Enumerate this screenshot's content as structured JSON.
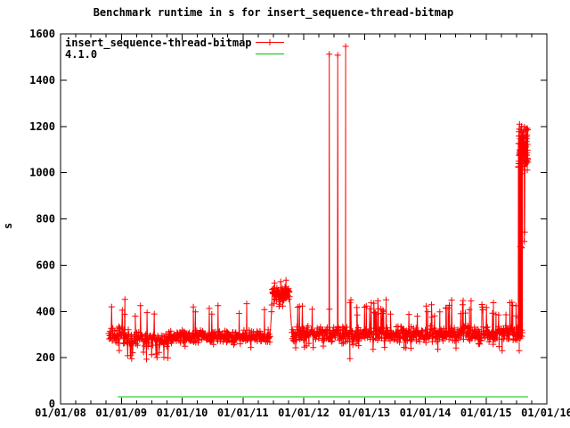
{
  "chart_data": {
    "type": "scatter",
    "style": "gnuplot-linespoints",
    "title": "Benchmark runtime in s for insert_sequence-thread-bitmap",
    "xlabel": "",
    "ylabel": "s",
    "grid": false,
    "legend_position": "top-left-inside",
    "x_tick_labels": [
      "01/01/08",
      "01/01/09",
      "01/01/10",
      "01/01/11",
      "01/01/12",
      "01/01/13",
      "01/01/14",
      "01/01/15",
      "01/01/16"
    ],
    "x_range_years": [
      2008,
      2016
    ],
    "x_minor_ticks_per_year": 4,
    "ylim": [
      0,
      1600
    ],
    "y_tick_step": 200,
    "series": [
      {
        "name": "insert_sequence-thread-bitmap",
        "color": "#ff0000",
        "marker": "plus",
        "style": "linespoints",
        "seed": 11,
        "band_segments": [
          {
            "x0": 2008.79,
            "x1": 2009.12,
            "n": 48,
            "base": 298,
            "spread": 44,
            "upP": 0.06,
            "upLo": 385,
            "upHi": 432,
            "dnP": 0.07,
            "dnLo": 205,
            "dnHi": 245
          },
          {
            "x0": 2009.12,
            "x1": 2009.78,
            "n": 85,
            "base": 283,
            "spread": 37,
            "upP": 0.05,
            "upLo": 375,
            "upHi": 428,
            "dnP": 0.08,
            "dnLo": 188,
            "dnHi": 228
          },
          {
            "x0": 2009.78,
            "x1": 2011.45,
            "n": 270,
            "base": 291,
            "spread": 33,
            "upP": 0.045,
            "upLo": 368,
            "upHi": 440,
            "dnP": 0.02,
            "dnLo": 238,
            "dnHi": 258
          },
          {
            "x0": 2011.47,
            "x1": 2011.77,
            "n": 65,
            "base": 479,
            "spread": 38,
            "upP": 0.06,
            "upLo": 512,
            "upHi": 545,
            "dnP": 0.12,
            "dnLo": 398,
            "dnHi": 442
          },
          {
            "x0": 2011.8,
            "x1": 2012.4,
            "n": 85,
            "base": 301,
            "spread": 38,
            "upP": 0.08,
            "upLo": 372,
            "upHi": 430,
            "dnP": 0.03,
            "dnLo": 238,
            "dnHi": 262
          },
          {
            "x0": 2012.4,
            "x1": 2015.6,
            "n": 520,
            "base": 301,
            "spread": 40,
            "upP": 0.085,
            "upLo": 372,
            "upHi": 452,
            "dnP": 0.04,
            "dnLo": 230,
            "dnHi": 262
          },
          {
            "x0": 2015.53,
            "x1": 2015.69,
            "n": 90,
            "base": 1095,
            "spread": 125,
            "upP": 0,
            "upLo": 0,
            "upHi": 0,
            "dnP": 0.12,
            "dnLo": 655,
            "dnHi": 870
          }
        ],
        "outlier_points": [
          [
            2009.06,
            452
          ],
          [
            2012.42,
            1512
          ],
          [
            2012.56,
            1508
          ],
          [
            2012.69,
            1546
          ],
          [
            2012.76,
            196
          ]
        ]
      },
      {
        "name": "4.1.0",
        "color": "#00c000",
        "style": "hline",
        "value": 31,
        "x_start": 2008.94,
        "x_end": 2015.69
      }
    ]
  }
}
